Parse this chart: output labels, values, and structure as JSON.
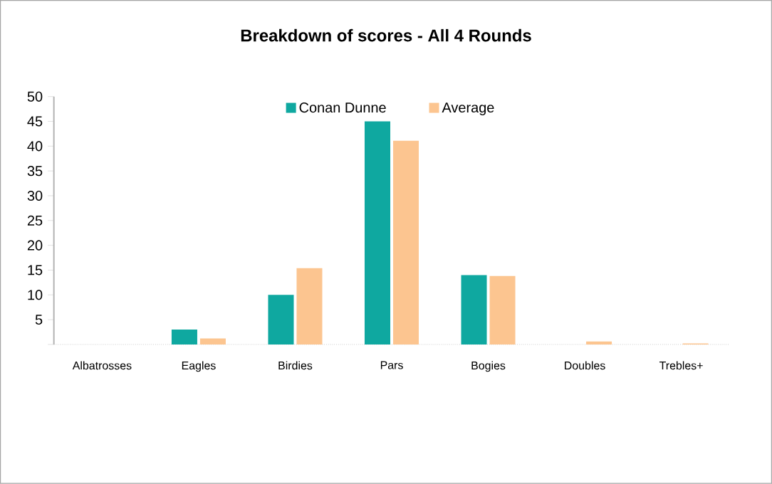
{
  "chart_data": {
    "type": "bar",
    "title": "Breakdown of scores - All 4 Rounds",
    "categories": [
      "Albatrosses",
      "Eagles",
      "Birdies",
      "Pars",
      "Bogies",
      "Doubles",
      "Trebles+"
    ],
    "series": [
      {
        "name": "Conan Dunne",
        "color": "#0fa8a0",
        "values": [
          0,
          3,
          10,
          45,
          14,
          0,
          0
        ]
      },
      {
        "name": "Average",
        "color": "#fcc590",
        "values": [
          0,
          1.2,
          15.4,
          41.1,
          13.8,
          0.6,
          0.2
        ]
      }
    ],
    "ylim": [
      0,
      50
    ],
    "yticks": [
      {
        "value": 0,
        "label": null
      },
      5,
      10,
      15,
      20,
      25,
      30,
      35,
      40,
      45,
      50
    ],
    "grid": false,
    "legend": "top"
  }
}
